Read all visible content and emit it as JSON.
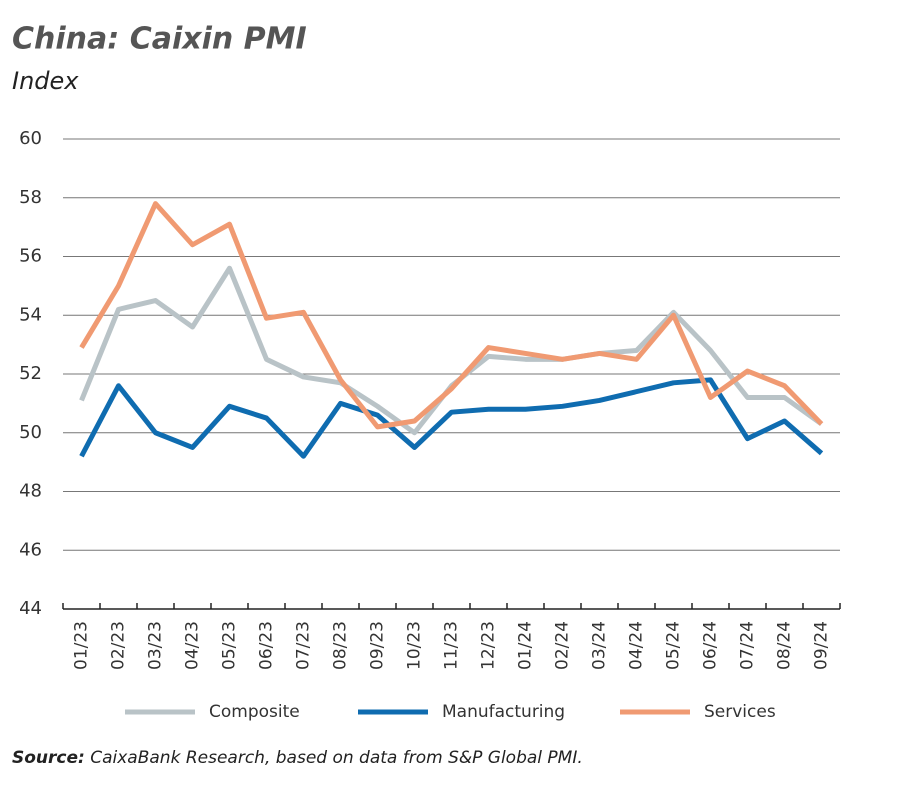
{
  "chart_data": {
    "type": "line",
    "title": "China: Caixin PMI",
    "subtitle": "Index",
    "categories": [
      "01/23",
      "02/23",
      "03/23",
      "04/23",
      "05/23",
      "06/23",
      "07/23",
      "08/23",
      "09/23",
      "10/23",
      "11/23",
      "12/23",
      "01/24",
      "02/24",
      "03/24",
      "04/24",
      "05/24",
      "06/24",
      "07/24",
      "08/24",
      "09/24"
    ],
    "series": [
      {
        "name": "Composite",
        "color": "#b9c3c7",
        "values": [
          51.1,
          54.2,
          54.5,
          53.6,
          55.6,
          52.5,
          51.9,
          51.7,
          50.9,
          50.0,
          51.6,
          52.6,
          52.5,
          52.5,
          52.7,
          52.8,
          54.1,
          52.8,
          51.2,
          51.2,
          50.3
        ]
      },
      {
        "name": "Manufacturing",
        "color": "#0f6cb0",
        "values": [
          49.2,
          51.6,
          50.0,
          49.5,
          50.9,
          50.5,
          49.2,
          51.0,
          50.6,
          49.5,
          50.7,
          50.8,
          50.8,
          50.9,
          51.1,
          51.4,
          51.7,
          51.8,
          49.8,
          50.4,
          49.3
        ]
      },
      {
        "name": "Services",
        "color": "#f09a72",
        "values": [
          52.9,
          55.0,
          57.8,
          56.4,
          57.1,
          53.9,
          54.1,
          51.8,
          50.2,
          50.4,
          51.5,
          52.9,
          52.7,
          52.5,
          52.7,
          52.5,
          54.0,
          51.2,
          52.1,
          51.6,
          50.3
        ]
      }
    ],
    "ylim": [
      44,
      60
    ],
    "yticks": [
      44,
      46,
      48,
      50,
      52,
      54,
      56,
      58,
      60
    ],
    "grid": true,
    "legend": "bottom",
    "source_label": "Source:",
    "source_text": "CaixaBank Research, based on data from S&P Global PMI."
  }
}
